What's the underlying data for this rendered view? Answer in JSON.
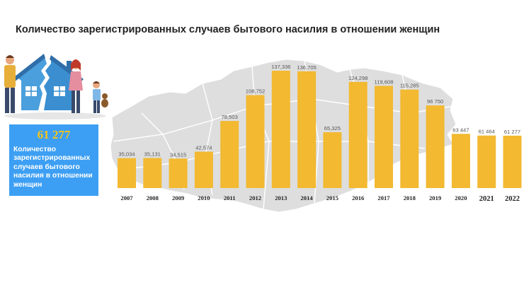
{
  "title": "Количество зарегистрированных случаев бытового насилия в отношении женщин",
  "stat_card": {
    "value": "61 277",
    "caption": "Количество зарегистрированных случаев бытового насилия в отношении женщин"
  },
  "colors": {
    "bar": "#f2b931",
    "stat_box": "#3d9ff3",
    "stat_value": "#f5c518",
    "map": "#dedede"
  },
  "chart_data": {
    "type": "bar",
    "title": "Количество зарегистрированных случаев бытового насилия в отношении женщин",
    "xlabel": "",
    "ylabel": "",
    "categories": [
      "2007",
      "2008",
      "2009",
      "2010",
      "2011",
      "2012",
      "2013",
      "2014",
      "2015",
      "2016",
      "2017",
      "2018",
      "2019",
      "2020",
      "2021",
      "2022"
    ],
    "values": [
      35034,
      35131,
      34515,
      42574,
      78503,
      108752,
      137336,
      136705,
      65325,
      124298,
      119608,
      115285,
      96750,
      63447,
      61464,
      61277
    ],
    "data_labels": [
      "35,034",
      "35,131",
      "34,515",
      "42,574",
      "78,503",
      "108,752",
      "137,336",
      "136,705",
      "65,325",
      "124,298",
      "119,608",
      "115,285",
      "96 750",
      "63 447",
      "61 464",
      "61 277"
    ],
    "grid": false,
    "legend": "none",
    "background": "map of Kazakhstan"
  }
}
